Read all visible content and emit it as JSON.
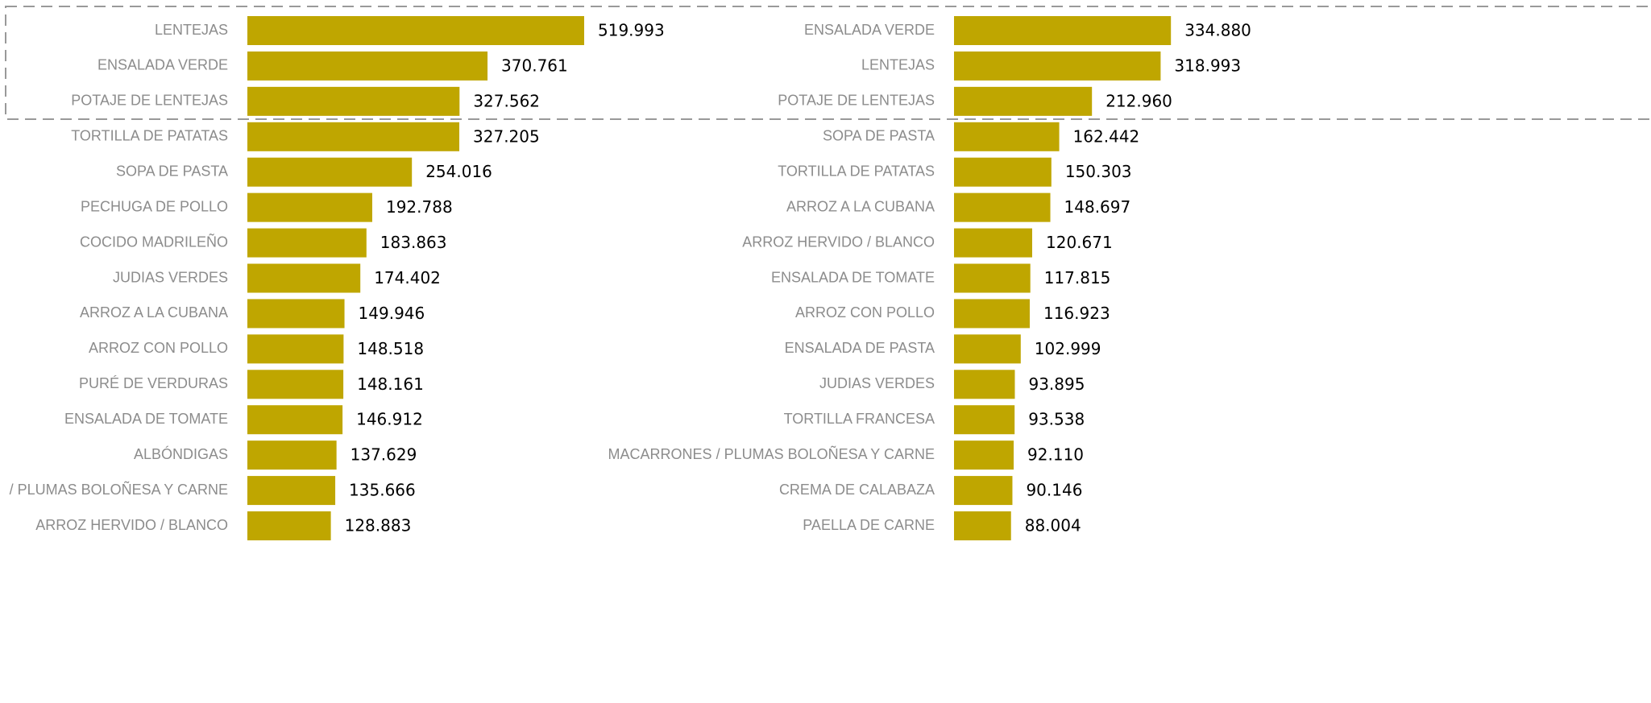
{
  "chart_data": [
    {
      "type": "bar",
      "color": "#bfa600",
      "categories": [
        "LENTEJAS",
        "ENSALADA VERDE",
        "POTAJE DE LENTEJAS",
        "TORTILLA DE PATATAS",
        "SOPA DE PASTA",
        "PECHUGA DE POLLO",
        "COCIDO MADRILEÑO",
        "JUDIAS VERDES",
        "ARROZ A LA CUBANA",
        "ARROZ CON POLLO",
        "PURÉ DE VERDURAS",
        "ENSALADA DE TOMATE",
        "ALBÓNDIGAS",
        "/ PLUMAS BOLOÑESA Y CARNE",
        "ARROZ HERVIDO / BLANCO"
      ],
      "values": [
        519993,
        370761,
        327562,
        327205,
        254016,
        192788,
        183863,
        174402,
        149946,
        148518,
        148161,
        146912,
        137629,
        135666,
        128883
      ],
      "value_labels": [
        "519.993",
        "370.761",
        "327.562",
        "327.205",
        "254.016",
        "192.788",
        "183.863",
        "174.402",
        "149.946",
        "148.518",
        "148.161",
        "146.912",
        "137.629",
        "135.666",
        "128.883"
      ]
    },
    {
      "type": "bar",
      "color": "#bfa600",
      "categories": [
        "ENSALADA VERDE",
        "LENTEJAS",
        "POTAJE DE LENTEJAS",
        "SOPA DE PASTA",
        "TORTILLA DE PATATAS",
        "ARROZ A LA CUBANA",
        "ARROZ HERVIDO / BLANCO",
        "ENSALADA DE TOMATE",
        "ARROZ CON POLLO",
        "ENSALADA DE PASTA",
        "JUDIAS VERDES",
        "TORTILLA FRANCESA",
        "MACARRONES / PLUMAS BOLOÑESA Y CARNE",
        "CREMA DE CALABAZA",
        "PAELLA DE CARNE"
      ],
      "values": [
        334880,
        318993,
        212960,
        162442,
        150303,
        148697,
        120671,
        117815,
        116923,
        102999,
        93895,
        93538,
        92110,
        90146,
        88004
      ],
      "value_labels": [
        "334.880",
        "318.993",
        "212.960",
        "162.442",
        "150.303",
        "148.697",
        "120.671",
        "117.815",
        "116.923",
        "102.999",
        "93.895",
        "93.538",
        "92.110",
        "90.146",
        "88.004"
      ]
    }
  ]
}
